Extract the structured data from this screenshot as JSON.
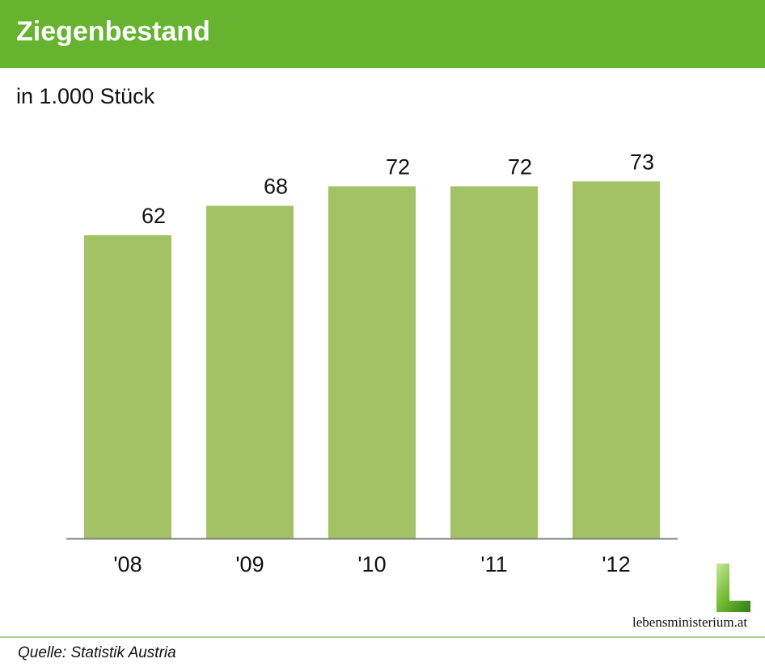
{
  "header": {
    "title": "Ziegenbestand"
  },
  "subtitle": "in 1.000 Stück",
  "footer": {
    "source": "Quelle: Statistik Austria",
    "logo_text": "lebensministerium.at"
  },
  "colors": {
    "header": "#65b32e",
    "bar": "#a3c266",
    "axis": "#808080"
  },
  "chart_data": {
    "type": "bar",
    "title": "Ziegenbestand",
    "ylabel": "in 1.000 Stück",
    "categories": [
      "'08",
      "'09",
      "'10",
      "'11",
      "'12"
    ],
    "values": [
      62,
      68,
      72,
      72,
      73
    ],
    "ylim": [
      0,
      80
    ],
    "grid": false,
    "legend": "none"
  }
}
